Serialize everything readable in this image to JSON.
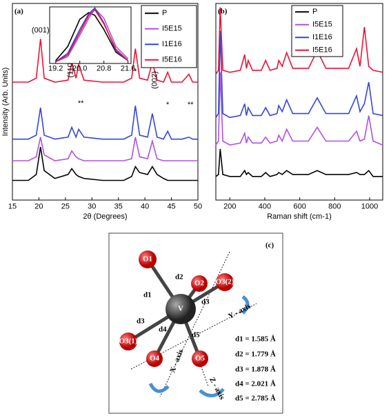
{
  "chart_data": [
    {
      "type": "line",
      "panel_label": "(a)",
      "xlabel": "2θ (Degrees)",
      "ylabel": "Intensity (Arb. Units)",
      "x": [
        15,
        18,
        19.5,
        20.3,
        21,
        23,
        25.5,
        26.2,
        27,
        27.5,
        28.5,
        32,
        36,
        37.5,
        38.2,
        39,
        40.5,
        41.4,
        42.3,
        43.5,
        44.3,
        45,
        47,
        48.3,
        49,
        50
      ],
      "xlim": [
        15,
        50
      ],
      "xticks": [
        15,
        20,
        25,
        30,
        35,
        40,
        45,
        50
      ],
      "ylim": [
        0,
        100
      ],
      "legend": "upper right",
      "series": [
        {
          "name": "P",
          "color": "#000000",
          "values": [
            10,
            10,
            13,
            27,
            15,
            11,
            13,
            16,
            13,
            12,
            11,
            10,
            10,
            12,
            17,
            14,
            13,
            17,
            13,
            11,
            10,
            10,
            10,
            10,
            10,
            10
          ]
        },
        {
          "name": "I5E15",
          "color": "#b050e0",
          "values": [
            20,
            20,
            22,
            32,
            23,
            20,
            21,
            25,
            22,
            21,
            20,
            20,
            20,
            21,
            32,
            22,
            21,
            30,
            21,
            20,
            20,
            20,
            20,
            20,
            20,
            20
          ]
        },
        {
          "name": "I1E16",
          "color": "#3344dd",
          "values": [
            31,
            31,
            33,
            47,
            33,
            31,
            32,
            37,
            32,
            36,
            32,
            31,
            31,
            33,
            48,
            33,
            32,
            44,
            32,
            31,
            35,
            31,
            31,
            32,
            31,
            31
          ]
        },
        {
          "name": "I5E16",
          "color": "#ee1133",
          "values": [
            60,
            60,
            62,
            82,
            62,
            60,
            61,
            70,
            62,
            69,
            61,
            60,
            60,
            62,
            77,
            62,
            61,
            70,
            61,
            60,
            65,
            60,
            60,
            64,
            60,
            60
          ]
        }
      ],
      "annotations": [
        "(001)",
        "(110)",
        "**",
        "*",
        "(002)",
        "*",
        "**"
      ]
    },
    {
      "type": "line",
      "x": [
        19.2,
        19.6,
        20,
        20.3,
        20.5,
        20.8,
        21.2,
        21.6
      ],
      "xlim": [
        19,
        21.7
      ],
      "xticks": [
        19.2,
        {
          "value": 20,
          "label": "20.0"
        },
        20.8,
        21.6
      ],
      "ylim": [
        0,
        100
      ],
      "series": [
        {
          "color": "#000000",
          "values": [
            5,
            30,
            78,
            90,
            85,
            60,
            20,
            5
          ]
        },
        {
          "color": "#b050e0",
          "values": [
            3,
            12,
            50,
            80,
            97,
            80,
            30,
            8
          ]
        },
        {
          "color": "#3344dd",
          "values": [
            3,
            18,
            60,
            88,
            98,
            72,
            22,
            5
          ]
        },
        {
          "color": "#ee1133",
          "values": [
            3,
            15,
            55,
            85,
            95,
            70,
            25,
            5
          ]
        }
      ]
    },
    {
      "type": "line",
      "panel_label": "(b)",
      "xlabel": "Raman shift (cm-1)",
      "x": [
        120,
        135,
        145,
        160,
        200,
        260,
        285,
        295,
        305,
        330,
        380,
        405,
        430,
        470,
        480,
        500,
        525,
        560,
        650,
        700,
        750,
        880,
        925,
        945,
        970,
        995,
        1020,
        1075
      ],
      "xlim": [
        120,
        1075
      ],
      "xticks": [
        200,
        400,
        600,
        800,
        1000
      ],
      "ylim": [
        0,
        100
      ],
      "legend": "upper center",
      "series": [
        {
          "name": "P",
          "color": "#000000",
          "values": [
            12,
            13,
            26,
            13,
            12,
            12,
            15,
            13,
            14,
            12,
            12,
            14,
            12,
            13,
            14,
            13,
            15,
            13,
            13,
            15,
            13,
            13,
            14,
            13,
            13,
            15,
            12,
            12
          ]
        },
        {
          "name": "I5E15",
          "color": "#b050e0",
          "values": [
            28,
            30,
            65,
            30,
            28,
            29,
            34,
            29,
            32,
            29,
            29,
            32,
            29,
            30,
            33,
            30,
            36,
            30,
            30,
            37,
            30,
            30,
            35,
            30,
            31,
            43,
            30,
            28
          ]
        },
        {
          "name": "I1E16",
          "color": "#3344dd",
          "values": [
            42,
            44,
            86,
            44,
            42,
            43,
            49,
            43,
            47,
            43,
            43,
            47,
            43,
            44,
            48,
            45,
            51,
            44,
            44,
            52,
            44,
            44,
            53,
            45,
            49,
            60,
            44,
            43
          ]
        },
        {
          "name": "I5E16",
          "color": "#ee1133",
          "values": [
            64,
            66,
            98,
            66,
            65,
            66,
            74,
            67,
            71,
            66,
            66,
            71,
            66,
            67,
            71,
            68,
            75,
            67,
            67,
            76,
            67,
            67,
            77,
            68,
            88,
            68,
            66,
            65
          ]
        }
      ]
    }
  ],
  "diagram": {
    "label": "(c)",
    "atoms": [
      "V",
      "O1",
      "O2",
      "O3(2)",
      "O3(1)",
      "O4",
      "O5"
    ],
    "bonds": [
      "d1",
      "d2",
      "d3",
      "d3",
      "d4",
      "d5"
    ],
    "axes": [
      "X - axis",
      "Y - axis",
      "Z - axis"
    ],
    "distances": [
      "d1 = 1.585 Å",
      "d2 = 1.779 Å",
      "d3 = 1.878 Å",
      "d4 = 2.021 Å",
      "d5 = 2.785 Å"
    ]
  }
}
